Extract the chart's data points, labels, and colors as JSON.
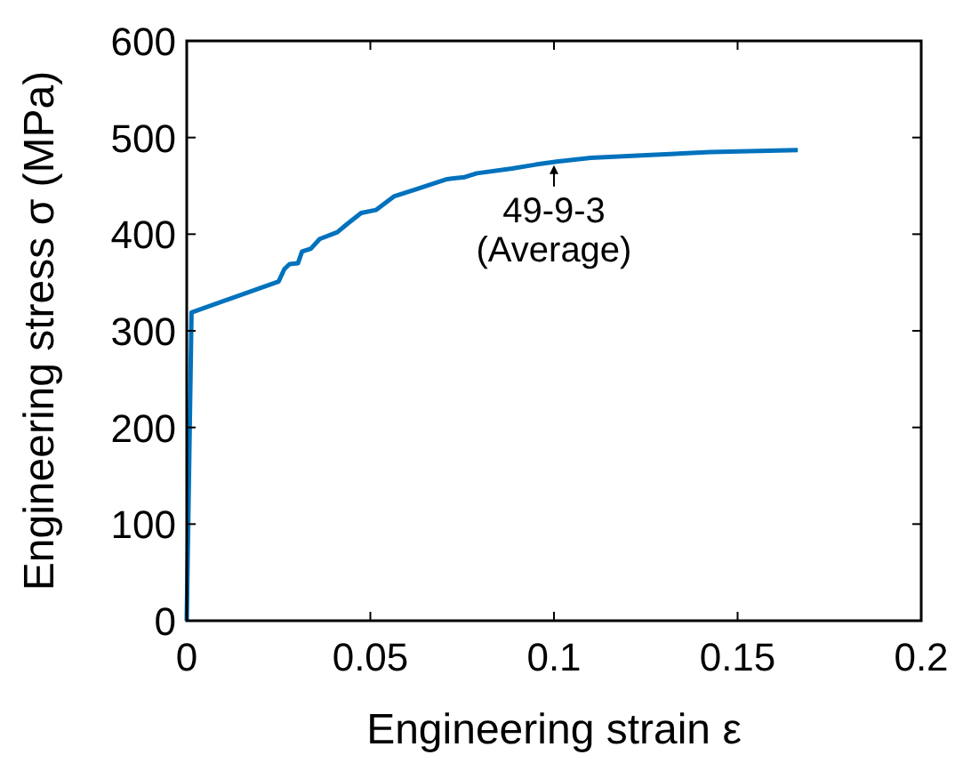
{
  "chart_data": {
    "type": "line",
    "xlabel": "Engineering strain ε",
    "ylabel": "Engineering stress σ (MPa)",
    "xlim": [
      0,
      0.2
    ],
    "xticks": [
      0,
      0.05,
      0.1,
      0.15,
      0.2
    ],
    "ylim": [
      0,
      600
    ],
    "yticks": [
      0,
      100,
      200,
      300,
      400,
      500,
      600
    ],
    "grid": false,
    "marker": "none",
    "line_style": "solid",
    "series": [
      {
        "color": "#0072bd",
        "x": [
          0,
          0.0013,
          0.025,
          0.0266,
          0.028,
          0.0303,
          0.0314,
          0.0338,
          0.0362,
          0.041,
          0.0435,
          0.0475,
          0.0515,
          0.0564,
          0.0628,
          0.0709,
          0.0757,
          0.079,
          0.0886,
          0.095,
          0.1007,
          0.11,
          0.1264,
          0.1425,
          0.1664
        ],
        "values": [
          0,
          319,
          351,
          364,
          369,
          370,
          382,
          385,
          395,
          402,
          410,
          422,
          425,
          439,
          447,
          457,
          459,
          463,
          468,
          472,
          475,
          479,
          482,
          485,
          487
        ]
      }
    ],
    "annotations": [
      {
        "text": "49-9-3\n(Average)",
        "x": 0.1,
        "y": 475
      }
    ]
  }
}
